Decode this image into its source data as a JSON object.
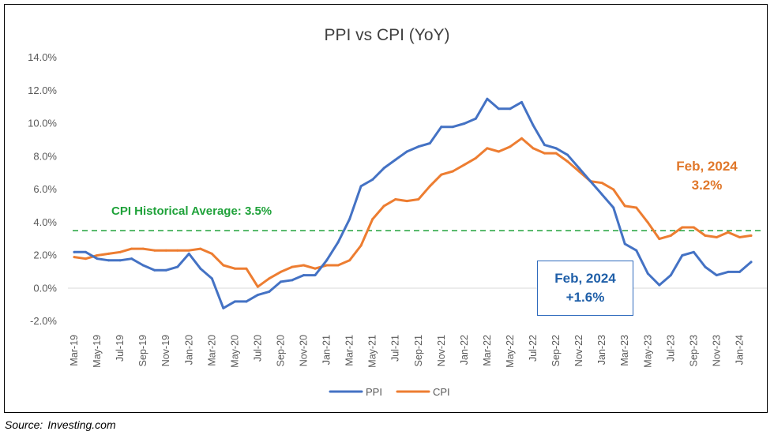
{
  "chart_data": {
    "type": "line",
    "title": "PPI vs CPI (YoY)",
    "xlabel": "",
    "ylabel": "",
    "ylim": [
      -2,
      14
    ],
    "y_ticks": [
      "-2.0%",
      "0.0%",
      "2.0%",
      "4.0%",
      "6.0%",
      "8.0%",
      "10.0%",
      "12.0%",
      "14.0%"
    ],
    "y_tick_values": [
      -2,
      0,
      2,
      4,
      6,
      8,
      10,
      12,
      14
    ],
    "x": [
      "Mar-19",
      "Apr-19",
      "May-19",
      "Jun-19",
      "Jul-19",
      "Aug-19",
      "Sep-19",
      "Oct-19",
      "Nov-19",
      "Dec-19",
      "Jan-20",
      "Feb-20",
      "Mar-20",
      "Apr-20",
      "May-20",
      "Jun-20",
      "Jul-20",
      "Aug-20",
      "Sep-20",
      "Oct-20",
      "Nov-20",
      "Dec-20",
      "Jan-21",
      "Feb-21",
      "Mar-21",
      "Apr-21",
      "May-21",
      "Jun-21",
      "Jul-21",
      "Aug-21",
      "Sep-21",
      "Oct-21",
      "Nov-21",
      "Dec-21",
      "Jan-22",
      "Feb-22",
      "Mar-22",
      "Apr-22",
      "May-22",
      "Jun-22",
      "Jul-22",
      "Aug-22",
      "Sep-22",
      "Oct-22",
      "Nov-22",
      "Dec-22",
      "Jan-23",
      "Feb-23",
      "Mar-23",
      "Apr-23",
      "May-23",
      "Jun-23",
      "Jul-23",
      "Aug-23",
      "Sep-23",
      "Oct-23",
      "Nov-23",
      "Dec-23",
      "Jan-24",
      "Feb-24"
    ],
    "x_tick_labels": [
      "Mar-19",
      "May-19",
      "Jul-19",
      "Sep-19",
      "Nov-19",
      "Jan-20",
      "Mar-20",
      "May-20",
      "Jul-20",
      "Sep-20",
      "Nov-20",
      "Jan-21",
      "Mar-21",
      "May-21",
      "Jul-21",
      "Sep-21",
      "Nov-21",
      "Jan-22",
      "Mar-22",
      "May-22",
      "Jul-22",
      "Sep-22",
      "Nov-22",
      "Jan-23",
      "Mar-23",
      "May-23",
      "Jul-23",
      "Sep-23",
      "Nov-23",
      "Jan-24"
    ],
    "series": [
      {
        "name": "PPI",
        "color": "#4472c4",
        "values": [
          2.2,
          2.2,
          1.8,
          1.7,
          1.7,
          1.8,
          1.4,
          1.1,
          1.1,
          1.3,
          2.1,
          1.2,
          0.6,
          -1.2,
          -0.8,
          -0.8,
          -0.4,
          -0.2,
          0.4,
          0.5,
          0.8,
          0.8,
          1.7,
          2.8,
          4.2,
          6.2,
          6.6,
          7.3,
          7.8,
          8.3,
          8.6,
          8.8,
          9.8,
          9.8,
          10.0,
          10.3,
          11.5,
          10.9,
          10.9,
          11.3,
          9.9,
          8.7,
          8.5,
          8.1,
          7.3,
          6.5,
          5.7,
          4.9,
          2.7,
          2.3,
          0.9,
          0.2,
          0.8,
          2.0,
          2.2,
          1.3,
          0.8,
          1.0,
          1.0,
          1.6
        ]
      },
      {
        "name": "CPI",
        "color": "#ed7d31",
        "values": [
          1.9,
          1.8,
          2.0,
          2.1,
          2.2,
          2.4,
          2.4,
          2.3,
          2.3,
          2.3,
          2.3,
          2.4,
          2.1,
          1.4,
          1.2,
          1.2,
          0.1,
          0.6,
          1.0,
          1.3,
          1.4,
          1.2,
          1.4,
          1.4,
          1.7,
          2.6,
          4.2,
          5.0,
          5.4,
          5.3,
          5.4,
          6.2,
          6.9,
          7.1,
          7.5,
          7.9,
          8.5,
          8.3,
          8.6,
          9.1,
          8.5,
          8.2,
          8.2,
          7.7,
          7.1,
          6.5,
          6.4,
          6.0,
          5.0,
          4.9,
          4.0,
          3.0,
          3.2,
          3.7,
          3.7,
          3.2,
          3.1,
          3.4,
          3.1,
          3.2
        ]
      }
    ],
    "reference_lines": [
      {
        "label": "CPI Historical Average:  3.5%",
        "value": 3.5,
        "color": "#1fa23a",
        "style": "dashed"
      }
    ],
    "annotations": [
      {
        "series": "PPI",
        "line1": "Feb, 2024",
        "line2": "+1.6%",
        "color": "#1f5fa8"
      },
      {
        "series": "CPI",
        "line1": "Feb, 2024",
        "line2": "3.2%",
        "color": "#e0772a"
      }
    ],
    "legend": {
      "position": "bottom",
      "entries": [
        "PPI",
        "CPI"
      ]
    },
    "grid": false
  },
  "source": {
    "label": "Source:",
    "text": "Investing.com"
  }
}
